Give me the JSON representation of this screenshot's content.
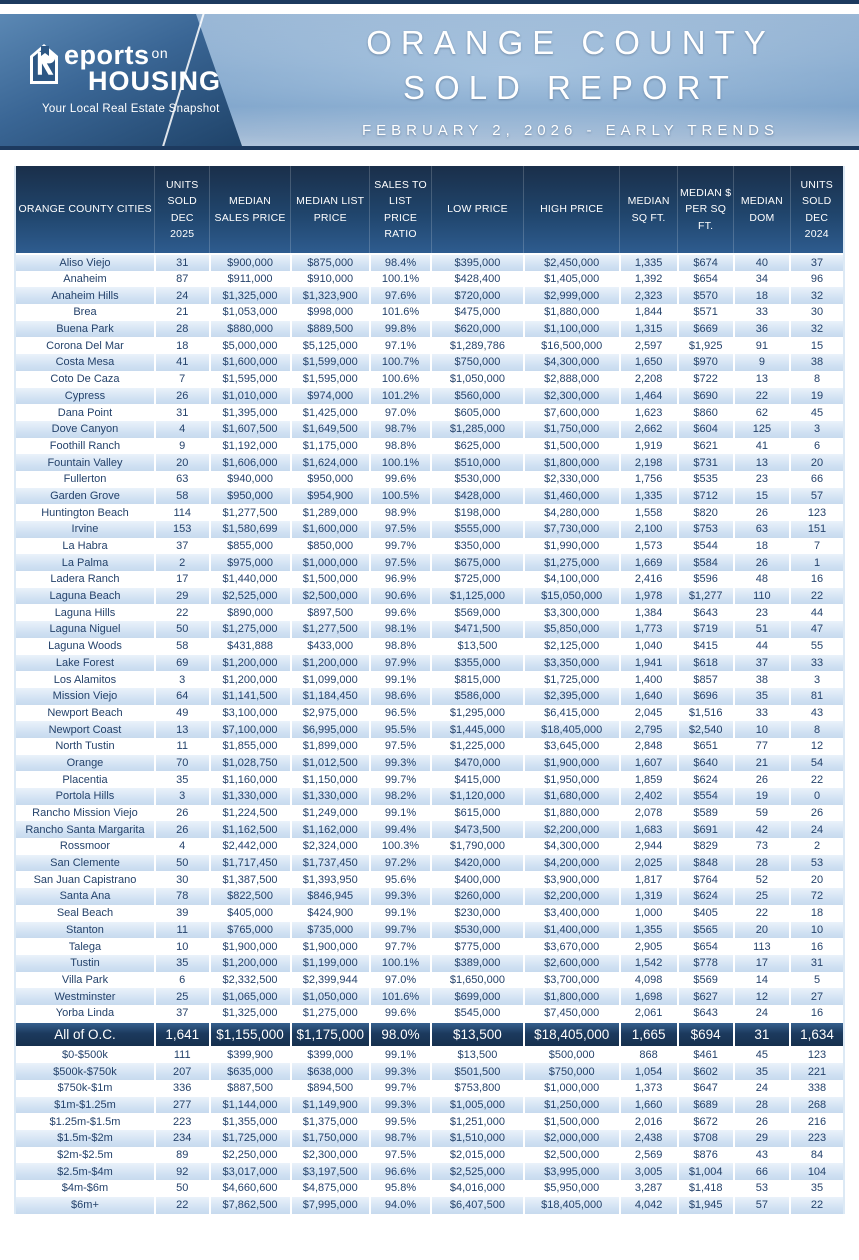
{
  "brand": {
    "logo_word1": "eports",
    "logo_word1_suffix": "on",
    "logo_word2": "HOUSING",
    "tagline": "Your Local Real Estate Snapshot",
    "logo_icon": "r-house-arrow-icon"
  },
  "header": {
    "title_line1": "ORANGE COUNTY",
    "title_line2": "SOLD REPORT",
    "subtitle": "FEBRUARY 2, 2026 - EARLY TRENDS"
  },
  "colors": {
    "top_rule_navy": "#1d3a5f",
    "banner_left_dark": "#1f4369",
    "banner_right_light": "#86add3",
    "table_header_navy": "#20456c",
    "row_stripe_blue": "#cfe0f2",
    "total_row_navy": "#1c3a5e",
    "cell_text_blue": "#24426b"
  },
  "table": {
    "columns": [
      "ORANGE COUNTY CITIES",
      "UNITS SOLD DEC 2025",
      "MEDIAN SALES PRICE",
      "MEDIAN LIST PRICE",
      "SALES TO LIST PRICE RATIO",
      "LOW PRICE",
      "HIGH PRICE",
      "MEDIAN SQ FT.",
      "MEDIAN $ PER SQ FT.",
      "MEDIAN DOM",
      "UNITS SOLD DEC 2024"
    ],
    "sections": [
      {
        "id": "cities",
        "start_striped": true,
        "rows": [
          [
            "Aliso Viejo",
            "31",
            "$900,000",
            "$875,000",
            "98.4%",
            "$395,000",
            "$2,450,000",
            "1,335",
            "$674",
            "40",
            "37"
          ],
          [
            "Anaheim",
            "87",
            "$911,000",
            "$910,000",
            "100.1%",
            "$428,400",
            "$1,405,000",
            "1,392",
            "$654",
            "34",
            "96"
          ],
          [
            "Anaheim Hills",
            "24",
            "$1,325,000",
            "$1,323,900",
            "97.6%",
            "$720,000",
            "$2,999,000",
            "2,323",
            "$570",
            "18",
            "32"
          ],
          [
            "Brea",
            "21",
            "$1,053,000",
            "$998,000",
            "101.6%",
            "$475,000",
            "$1,880,000",
            "1,844",
            "$571",
            "33",
            "30"
          ],
          [
            "Buena Park",
            "28",
            "$880,000",
            "$889,500",
            "99.8%",
            "$620,000",
            "$1,100,000",
            "1,315",
            "$669",
            "36",
            "32"
          ],
          [
            "Corona Del Mar",
            "18",
            "$5,000,000",
            "$5,125,000",
            "97.1%",
            "$1,289,786",
            "$16,500,000",
            "2,597",
            "$1,925",
            "91",
            "15"
          ],
          [
            "Costa Mesa",
            "41",
            "$1,600,000",
            "$1,599,000",
            "100.7%",
            "$750,000",
            "$4,300,000",
            "1,650",
            "$970",
            "9",
            "38"
          ],
          [
            "Coto De Caza",
            "7",
            "$1,595,000",
            "$1,595,000",
            "100.6%",
            "$1,050,000",
            "$2,888,000",
            "2,208",
            "$722",
            "13",
            "8"
          ],
          [
            "Cypress",
            "26",
            "$1,010,000",
            "$974,000",
            "101.2%",
            "$560,000",
            "$2,300,000",
            "1,464",
            "$690",
            "22",
            "19"
          ],
          [
            "Dana Point",
            "31",
            "$1,395,000",
            "$1,425,000",
            "97.0%",
            "$605,000",
            "$7,600,000",
            "1,623",
            "$860",
            "62",
            "45"
          ],
          [
            "Dove Canyon",
            "4",
            "$1,607,500",
            "$1,649,500",
            "98.7%",
            "$1,285,000",
            "$1,750,000",
            "2,662",
            "$604",
            "125",
            "3"
          ],
          [
            "Foothill Ranch",
            "9",
            "$1,192,000",
            "$1,175,000",
            "98.8%",
            "$625,000",
            "$1,500,000",
            "1,919",
            "$621",
            "41",
            "6"
          ],
          [
            "Fountain Valley",
            "20",
            "$1,606,000",
            "$1,624,000",
            "100.1%",
            "$510,000",
            "$1,800,000",
            "2,198",
            "$731",
            "13",
            "20"
          ],
          [
            "Fullerton",
            "63",
            "$940,000",
            "$950,000",
            "99.6%",
            "$530,000",
            "$2,330,000",
            "1,756",
            "$535",
            "23",
            "66"
          ],
          [
            "Garden Grove",
            "58",
            "$950,000",
            "$954,900",
            "100.5%",
            "$428,000",
            "$1,460,000",
            "1,335",
            "$712",
            "15",
            "57"
          ],
          [
            "Huntington Beach",
            "114",
            "$1,277,500",
            "$1,289,000",
            "98.9%",
            "$198,000",
            "$4,280,000",
            "1,558",
            "$820",
            "26",
            "123"
          ],
          [
            "Irvine",
            "153",
            "$1,580,699",
            "$1,600,000",
            "97.5%",
            "$555,000",
            "$7,730,000",
            "2,100",
            "$753",
            "63",
            "151"
          ],
          [
            "La Habra",
            "37",
            "$855,000",
            "$850,000",
            "99.7%",
            "$350,000",
            "$1,990,000",
            "1,573",
            "$544",
            "18",
            "7"
          ],
          [
            "La Palma",
            "2",
            "$975,000",
            "$1,000,000",
            "97.5%",
            "$675,000",
            "$1,275,000",
            "1,669",
            "$584",
            "26",
            "1"
          ],
          [
            "Ladera Ranch",
            "17",
            "$1,440,000",
            "$1,500,000",
            "96.9%",
            "$725,000",
            "$4,100,000",
            "2,416",
            "$596",
            "48",
            "16"
          ],
          [
            "Laguna Beach",
            "29",
            "$2,525,000",
            "$2,500,000",
            "90.6%",
            "$1,125,000",
            "$15,050,000",
            "1,978",
            "$1,277",
            "110",
            "22"
          ],
          [
            "Laguna Hills",
            "22",
            "$890,000",
            "$897,500",
            "99.6%",
            "$569,000",
            "$3,300,000",
            "1,384",
            "$643",
            "23",
            "44"
          ],
          [
            "Laguna Niguel",
            "50",
            "$1,275,000",
            "$1,277,500",
            "98.1%",
            "$471,500",
            "$5,850,000",
            "1,773",
            "$719",
            "51",
            "47"
          ],
          [
            "Laguna Woods",
            "58",
            "$431,888",
            "$433,000",
            "98.8%",
            "$13,500",
            "$2,125,000",
            "1,040",
            "$415",
            "44",
            "55"
          ],
          [
            "Lake Forest",
            "69",
            "$1,200,000",
            "$1,200,000",
            "97.9%",
            "$355,000",
            "$3,350,000",
            "1,941",
            "$618",
            "37",
            "33"
          ],
          [
            "Los Alamitos",
            "3",
            "$1,200,000",
            "$1,099,000",
            "99.1%",
            "$815,000",
            "$1,725,000",
            "1,400",
            "$857",
            "38",
            "3"
          ],
          [
            "Mission Viejo",
            "64",
            "$1,141,500",
            "$1,184,450",
            "98.6%",
            "$586,000",
            "$2,395,000",
            "1,640",
            "$696",
            "35",
            "81"
          ],
          [
            "Newport Beach",
            "49",
            "$3,100,000",
            "$2,975,000",
            "96.5%",
            "$1,295,000",
            "$6,415,000",
            "2,045",
            "$1,516",
            "33",
            "43"
          ],
          [
            "Newport Coast",
            "13",
            "$7,100,000",
            "$6,995,000",
            "95.5%",
            "$1,445,000",
            "$18,405,000",
            "2,795",
            "$2,540",
            "10",
            "8"
          ],
          [
            "North Tustin",
            "11",
            "$1,855,000",
            "$1,899,000",
            "97.5%",
            "$1,225,000",
            "$3,645,000",
            "2,848",
            "$651",
            "77",
            "12"
          ],
          [
            "Orange",
            "70",
            "$1,028,750",
            "$1,012,500",
            "99.3%",
            "$470,000",
            "$1,900,000",
            "1,607",
            "$640",
            "21",
            "54"
          ],
          [
            "Placentia",
            "35",
            "$1,160,000",
            "$1,150,000",
            "99.7%",
            "$415,000",
            "$1,950,000",
            "1,859",
            "$624",
            "26",
            "22"
          ],
          [
            "Portola Hills",
            "3",
            "$1,330,000",
            "$1,330,000",
            "98.2%",
            "$1,120,000",
            "$1,680,000",
            "2,402",
            "$554",
            "19",
            "0"
          ],
          [
            "Rancho Mission Viejo",
            "26",
            "$1,224,500",
            "$1,249,000",
            "99.1%",
            "$615,000",
            "$1,880,000",
            "2,078",
            "$589",
            "59",
            "26"
          ],
          [
            "Rancho Santa Margarita",
            "26",
            "$1,162,500",
            "$1,162,000",
            "99.4%",
            "$473,500",
            "$2,200,000",
            "1,683",
            "$691",
            "42",
            "24"
          ],
          [
            "Rossmoor",
            "4",
            "$2,442,000",
            "$2,324,000",
            "100.3%",
            "$1,790,000",
            "$4,300,000",
            "2,944",
            "$829",
            "73",
            "2"
          ],
          [
            "San Clemente",
            "50",
            "$1,717,450",
            "$1,737,450",
            "97.2%",
            "$420,000",
            "$4,200,000",
            "2,025",
            "$848",
            "28",
            "53"
          ],
          [
            "San Juan Capistrano",
            "30",
            "$1,387,500",
            "$1,393,950",
            "95.6%",
            "$400,000",
            "$3,900,000",
            "1,817",
            "$764",
            "52",
            "20"
          ],
          [
            "Santa Ana",
            "78",
            "$822,500",
            "$846,945",
            "99.3%",
            "$260,000",
            "$2,200,000",
            "1,319",
            "$624",
            "25",
            "72"
          ],
          [
            "Seal Beach",
            "39",
            "$405,000",
            "$424,900",
            "99.1%",
            "$230,000",
            "$3,400,000",
            "1,000",
            "$405",
            "22",
            "18"
          ],
          [
            "Stanton",
            "11",
            "$765,000",
            "$735,000",
            "99.7%",
            "$530,000",
            "$1,400,000",
            "1,355",
            "$565",
            "20",
            "10"
          ],
          [
            "Talega",
            "10",
            "$1,900,000",
            "$1,900,000",
            "97.7%",
            "$775,000",
            "$3,670,000",
            "2,905",
            "$654",
            "113",
            "16"
          ],
          [
            "Tustin",
            "35",
            "$1,200,000",
            "$1,199,000",
            "100.1%",
            "$389,000",
            "$2,600,000",
            "1,542",
            "$778",
            "17",
            "31"
          ],
          [
            "Villa Park",
            "6",
            "$2,332,500",
            "$2,399,944",
            "97.0%",
            "$1,650,000",
            "$3,700,000",
            "4,098",
            "$569",
            "14",
            "5"
          ],
          [
            "Westminster",
            "25",
            "$1,065,000",
            "$1,050,000",
            "101.6%",
            "$699,000",
            "$1,800,000",
            "1,698",
            "$627",
            "12",
            "27"
          ],
          [
            "Yorba Linda",
            "37",
            "$1,325,000",
            "$1,275,000",
            "99.6%",
            "$545,000",
            "$7,450,000",
            "2,061",
            "$643",
            "24",
            "16"
          ]
        ]
      },
      {
        "id": "total",
        "is_total": true,
        "rows": [
          [
            "All of O.C.",
            "1,641",
            "$1,155,000",
            "$1,175,000",
            "98.0%",
            "$13,500",
            "$18,405,000",
            "1,665",
            "$694",
            "31",
            "1,634"
          ]
        ]
      },
      {
        "id": "price_ranges",
        "start_striped": false,
        "rows": [
          [
            "$0-$500k",
            "111",
            "$399,900",
            "$399,000",
            "99.1%",
            "$13,500",
            "$500,000",
            "868",
            "$461",
            "45",
            "123"
          ],
          [
            "$500k-$750k",
            "207",
            "$635,000",
            "$638,000",
            "99.3%",
            "$501,500",
            "$750,000",
            "1,054",
            "$602",
            "35",
            "221"
          ],
          [
            "$750k-$1m",
            "336",
            "$887,500",
            "$894,500",
            "99.7%",
            "$753,800",
            "$1,000,000",
            "1,373",
            "$647",
            "24",
            "338"
          ],
          [
            "$1m-$1.25m",
            "277",
            "$1,144,000",
            "$1,149,900",
            "99.3%",
            "$1,005,000",
            "$1,250,000",
            "1,660",
            "$689",
            "28",
            "268"
          ],
          [
            "$1.25m-$1.5m",
            "223",
            "$1,355,000",
            "$1,375,000",
            "99.5%",
            "$1,251,000",
            "$1,500,000",
            "2,016",
            "$672",
            "26",
            "216"
          ],
          [
            "$1.5m-$2m",
            "234",
            "$1,725,000",
            "$1,750,000",
            "98.7%",
            "$1,510,000",
            "$2,000,000",
            "2,438",
            "$708",
            "29",
            "223"
          ],
          [
            "$2m-$2.5m",
            "89",
            "$2,250,000",
            "$2,300,000",
            "97.5%",
            "$2,015,000",
            "$2,500,000",
            "2,569",
            "$876",
            "43",
            "84"
          ],
          [
            "$2.5m-$4m",
            "92",
            "$3,017,000",
            "$3,197,500",
            "96.6%",
            "$2,525,000",
            "$3,995,000",
            "3,005",
            "$1,004",
            "66",
            "104"
          ],
          [
            "$4m-$6m",
            "50",
            "$4,660,600",
            "$4,875,000",
            "95.8%",
            "$4,016,000",
            "$5,950,000",
            "3,287",
            "$1,418",
            "53",
            "35"
          ],
          [
            "$6m+",
            "22",
            "$7,862,500",
            "$7,995,000",
            "94.0%",
            "$6,407,500",
            "$18,405,000",
            "4,042",
            "$1,945",
            "57",
            "22"
          ]
        ]
      }
    ]
  }
}
